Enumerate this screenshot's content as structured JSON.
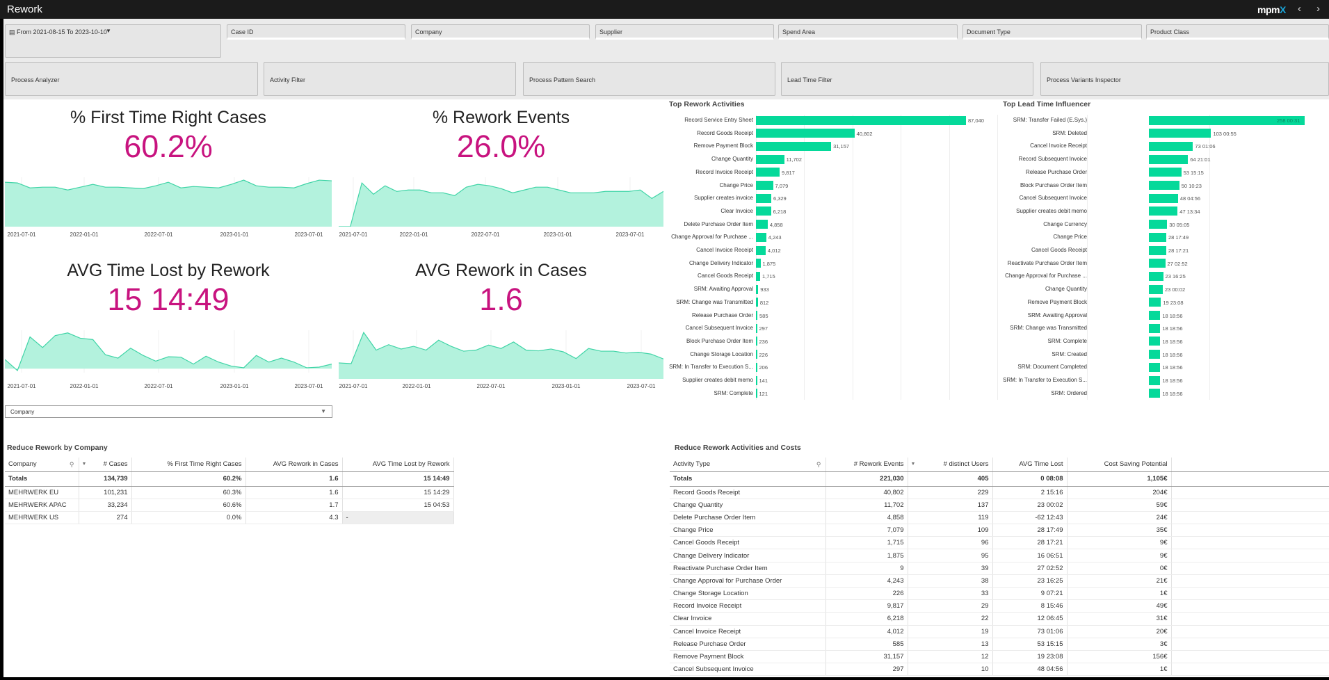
{
  "header": {
    "title": "Rework",
    "logo": "mpmX",
    "prev_label": "‹",
    "next_label": "›"
  },
  "filters": {
    "date_range": "From 2021-08-15 To 2023-10-10",
    "fields": [
      "Case ID",
      "Company",
      "Supplier",
      "Spend Area",
      "Document Type",
      "Product Class"
    ],
    "tools": [
      "Process Analyzer",
      "Activity Filter",
      "Process Pattern Search",
      "Lead Time Filter",
      "Process Variants Inspector"
    ]
  },
  "kpis": [
    {
      "title": "% First Time Right Cases",
      "value": "60.2%",
      "ticks": [
        "2021-07-01",
        "2022-01-01",
        "2022-07-01",
        "2023-01-01",
        "2023-07-01"
      ],
      "series": [
        63,
        62,
        55,
        56,
        56,
        52,
        56,
        60,
        56,
        56,
        55,
        54,
        58,
        63,
        55,
        57,
        56,
        55,
        60,
        66,
        58,
        56,
        56,
        55,
        61,
        66,
        65
      ],
      "ylim": [
        0,
        70
      ]
    },
    {
      "title": "% Rework Events",
      "value": "26.0%",
      "ticks": [
        "2021-07-01",
        "2022-01-01",
        "2022-07-01",
        "2023-01-01",
        "2023-07-01"
      ],
      "series": [
        0,
        0,
        31,
        23,
        29,
        25,
        26,
        26,
        24,
        24,
        22,
        28,
        30,
        29,
        27,
        24,
        26,
        28,
        28,
        26,
        24,
        24,
        24,
        25,
        25,
        25,
        26,
        20,
        25
      ],
      "ylim": [
        0,
        35
      ]
    },
    {
      "title": "AVG Time Lost by Rework",
      "value": "15 14:49",
      "ticks": [
        "2021-07-01",
        "2022-01-01",
        "2022-07-01",
        "2023-01-01",
        "2023-07-01"
      ],
      "series": [
        7,
        -1.4,
        24,
        16,
        25,
        27,
        23,
        22,
        10.5,
        8,
        15.5,
        10,
        5.7,
        9,
        8.7,
        3.5,
        9.4,
        5,
        2,
        0.7,
        10,
        5,
        8,
        5,
        0.7,
        1.2,
        3.5
      ],
      "ylim": [
        -3,
        29
      ]
    },
    {
      "title": "AVG Rework in Cases",
      "value": "1.6",
      "ticks": [
        "2021-07-01",
        "2022-01-01",
        "2022-07-01",
        "2023-01-01",
        "2023-07-01"
      ],
      "series": [
        0.89,
        0.85,
        2.58,
        1.6,
        1.9,
        1.66,
        1.81,
        1.6,
        2.15,
        1.81,
        1.54,
        1.6,
        1.88,
        1.69,
        2.05,
        1.6,
        1.56,
        1.66,
        1.5,
        1.13,
        1.69,
        1.54,
        1.54,
        1.44,
        1.48,
        1.38,
        1.11
      ],
      "ylim": [
        0,
        2.7
      ]
    }
  ],
  "company_dropdown": {
    "value": "Company"
  },
  "chart_data": [
    {
      "type": "bar",
      "orientation": "horizontal",
      "title": "Top Rework Activities",
      "categories": [
        "Record Service Entry Sheet",
        "Record Goods Receipt",
        "Remove Payment Block",
        "Change Quantity",
        "Record Invoice Receipt",
        "Change Price",
        "Supplier creates invoice",
        "Clear Invoice",
        "Delete Purchase Order Item",
        "Change Approval for Purchase ...",
        "Cancel Invoice Receipt",
        "Change Delivery Indicator",
        "Cancel Goods Receipt",
        "SRM: Awaiting Approval",
        "SRM: Change was Transmitted",
        "Release Purchase Order",
        "Cancel Subsequent Invoice",
        "Block Purchase Order Item",
        "Change Storage Location",
        "SRM: In Transfer to Execution S...",
        "Supplier creates debit memo",
        "SRM: Complete"
      ],
      "values": [
        87040,
        40802,
        31157,
        11702,
        9817,
        7079,
        6329,
        6218,
        4858,
        4243,
        4012,
        1875,
        1715,
        933,
        812,
        585,
        297,
        236,
        226,
        206,
        141,
        121
      ],
      "labels": [
        "87,040",
        "40,802",
        "31,157",
        "11,702",
        "9,817",
        "7,079",
        "6,329",
        "6,218",
        "4,858",
        "4,243",
        "4,012",
        "1,875",
        "1,715",
        "933",
        "812",
        "585",
        "297",
        "236",
        "226",
        "206",
        "141",
        "121"
      ],
      "xlim": [
        0,
        100000
      ]
    },
    {
      "type": "bar",
      "orientation": "horizontal",
      "title": "Top Lead Time Influencer",
      "categories": [
        "SRM: Transfer Failed (E.Sys.)",
        "SRM: Deleted",
        "Cancel Invoice Receipt",
        "Record Subsequent Invoice",
        "Release Purchase Order",
        "Block Purchase Order Item",
        "Cancel Subsequent Invoice",
        "Supplier creates debit memo",
        "Change Currency",
        "Change Price",
        "Cancel Goods Receipt",
        "Reactivate Purchase Order Item",
        "Change Approval for Purchase ...",
        "Change Quantity",
        "Remove Payment Block",
        "SRM: Awaiting Approval",
        "SRM: Change was Transmitted",
        "SRM: Complete",
        "SRM: Created",
        "SRM: Document Completed",
        "SRM: In Transfer to Execution S...",
        "SRM: Ordered"
      ],
      "values": [
        258.02,
        103.04,
        73.04,
        64.88,
        53.64,
        50.43,
        48.2,
        47.57,
        30.21,
        28.74,
        28.72,
        27.12,
        23.68,
        23.0,
        19.96,
        18.79,
        18.79,
        18.79,
        18.79,
        18.79,
        18.79,
        18.79
      ],
      "labels": [
        "258 00:31",
        "103 00:55",
        "73 01:06",
        "64 21:01",
        "53 15:15",
        "50 10:23",
        "48 04:56",
        "47 13:34",
        "30 05:05",
        "28 17:49",
        "28 17:21",
        "27 02:52",
        "23 16:25",
        "23 00:02",
        "19 23:08",
        "18 18:56",
        "18 18:56",
        "18 18:56",
        "18 18:56",
        "18 18:56",
        "18 18:56",
        "18 18:56"
      ],
      "xlim": [
        0,
        300
      ]
    }
  ],
  "company_table": {
    "title": "Reduce Rework by Company",
    "columns": [
      "Company",
      "# Cases",
      "% First Time Right Cases",
      "AVG Rework in Cases",
      "AVG Time Lost by Rework"
    ],
    "totals": [
      "Totals",
      "134,739",
      "60.2%",
      "1.6",
      "15 14:49"
    ],
    "rows": [
      [
        "MEHRWERK EU",
        "101,231",
        "60.3%",
        "1.6",
        "15 14:29"
      ],
      [
        "MEHRWERK APAC",
        "33,234",
        "60.6%",
        "1.7",
        "15 04:53"
      ],
      [
        "MEHRWERK US",
        "274",
        "0.0%",
        "4.3",
        "-"
      ]
    ]
  },
  "activity_table": {
    "title": "Reduce Rework Activities and Costs",
    "columns": [
      "Activity Type",
      "# Rework Events",
      "# distinct Users",
      "AVG Time Lost",
      "Cost Saving Potential"
    ],
    "totals": [
      "Totals",
      "221,030",
      "405",
      "0 08:08",
      "1,105€"
    ],
    "rows": [
      [
        "Record Goods Receipt",
        "40,802",
        "229",
        "2 15:16",
        "204€"
      ],
      [
        "Change Quantity",
        "11,702",
        "137",
        "23 00:02",
        "59€"
      ],
      [
        "Delete Purchase Order Item",
        "4,858",
        "119",
        "-62 12:43",
        "24€"
      ],
      [
        "Change Price",
        "7,079",
        "109",
        "28 17:49",
        "35€"
      ],
      [
        "Cancel Goods Receipt",
        "1,715",
        "96",
        "28 17:21",
        "9€"
      ],
      [
        "Change Delivery Indicator",
        "1,875",
        "95",
        "16 06:51",
        "9€"
      ],
      [
        "Reactivate Purchase Order Item",
        "9",
        "39",
        "27 02:52",
        "0€"
      ],
      [
        "Change Approval for Purchase Order",
        "4,243",
        "38",
        "23 16:25",
        "21€"
      ],
      [
        "Change Storage Location",
        "226",
        "33",
        "9 07:21",
        "1€"
      ],
      [
        "Record Invoice Receipt",
        "9,817",
        "29",
        "8 15:46",
        "49€"
      ],
      [
        "Clear Invoice",
        "6,218",
        "22",
        "12 06:45",
        "31€"
      ],
      [
        "Cancel Invoice Receipt",
        "4,012",
        "19",
        "73 01:06",
        "20€"
      ],
      [
        "Release Purchase Order",
        "585",
        "13",
        "53 15:15",
        "3€"
      ],
      [
        "Remove Payment Block",
        "31,157",
        "12",
        "19 23:08",
        "156€"
      ],
      [
        "Cancel Subsequent Invoice",
        "297",
        "10",
        "48 04:56",
        "1€"
      ]
    ]
  },
  "colors": {
    "accent": "#c8137f",
    "bar": "#05d99a",
    "area": "#b3f2dd",
    "line": "#3fd4a6"
  }
}
